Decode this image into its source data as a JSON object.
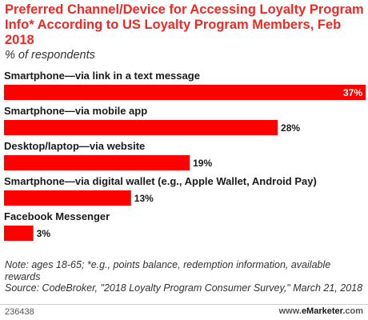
{
  "header": {
    "title": "Preferred Channel/Device for Accessing Loyalty Program Info* According to US Loyalty Program Members, Feb 2018",
    "subtitle": "% of respondents"
  },
  "chart_data": {
    "type": "bar",
    "orientation": "horizontal",
    "categories": [
      "Smartphone—via link in a text message",
      "Smartphone—via mobile app",
      "Desktop/laptop—via website",
      "Smartphone—via digital wallet (e.g., Apple Wallet, Android Pay)",
      "Facebook Messenger"
    ],
    "values": [
      37,
      28,
      19,
      13,
      3
    ],
    "value_labels": [
      "37%",
      "28%",
      "19%",
      "13%",
      "3%"
    ],
    "xlim": [
      0,
      37
    ],
    "grid": false,
    "bar_color": "#ff0000"
  },
  "notes": {
    "note": "Note: ages 18-65; *e.g., points balance, redemption information, available rewards",
    "source": "Source: CodeBroker, \"2018 Loyalty Program Consumer Survey,\" March 21, 2018"
  },
  "footer": {
    "id": "236438",
    "brand_prefix": "www.",
    "brand_name": "eMarketer",
    "brand_suffix": ".com"
  }
}
